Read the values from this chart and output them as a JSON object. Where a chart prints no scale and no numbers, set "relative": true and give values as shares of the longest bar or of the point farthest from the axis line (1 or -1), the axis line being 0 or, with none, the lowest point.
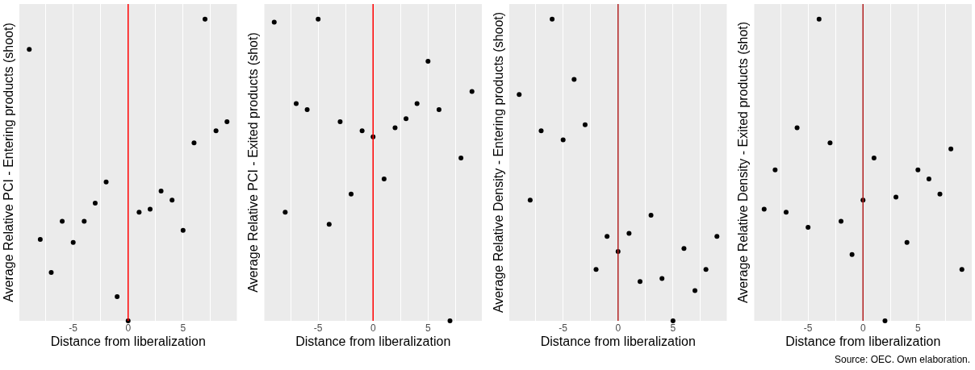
{
  "chart_data": [
    {
      "type": "scatter",
      "relative": true,
      "xlabel": "Distance from liberalization",
      "ylabel": "Average Relative PCI - Entering products (shoot)",
      "x": [
        -9,
        -8,
        -7,
        -6,
        -5,
        -4,
        -3,
        -2,
        -1,
        0,
        1,
        2,
        3,
        4,
        5,
        6,
        7,
        8,
        9
      ],
      "series": [
        {
          "color": "#000000",
          "values": [
            0.9,
            0.27,
            0.16,
            0.33,
            0.26,
            0.33,
            0.39,
            0.46,
            0.08,
            0,
            0.36,
            0.37,
            0.43,
            0.4,
            0.3,
            0.59,
            1,
            0.63,
            0.66
          ]
        }
      ],
      "xlim": [
        -9.9,
        9.9
      ],
      "xticks": [
        {
          "value": -7.5,
          "label": null
        },
        -5,
        {
          "value": -2.5,
          "label": null
        },
        0,
        {
          "value": 2.5,
          "label": null
        },
        5,
        {
          "value": 7.5,
          "label": null
        }
      ],
      "grid": "x",
      "marker": "circle",
      "tick_labels": "x",
      "ref_lines": [
        {
          "axis": "x",
          "value": 0,
          "color": "#ff0000"
        }
      ]
    },
    {
      "type": "scatter",
      "relative": true,
      "xlabel": "Distance from liberalization",
      "ylabel": "Average Relative PCI - Exited products (shot)",
      "x": [
        -9,
        -8,
        -7,
        -6,
        -5,
        -4,
        -3,
        -2,
        -1,
        0,
        1,
        2,
        3,
        4,
        5,
        6,
        7,
        8,
        9
      ],
      "series": [
        {
          "color": "#000000",
          "values": [
            0.99,
            0.36,
            0.72,
            0.7,
            1,
            0.32,
            0.66,
            0.42,
            0.63,
            0.61,
            0.47,
            0.64,
            0.67,
            0.72,
            0.86,
            0.7,
            0,
            0.54,
            0.76
          ]
        }
      ],
      "xlim": [
        -9.9,
        9.9
      ],
      "xticks": [
        {
          "value": -7.5,
          "label": null
        },
        -5,
        {
          "value": -2.5,
          "label": null
        },
        0,
        {
          "value": 2.5,
          "label": null
        },
        5,
        {
          "value": 7.5,
          "label": null
        }
      ],
      "grid": "x",
      "marker": "circle",
      "tick_labels": "x",
      "ref_lines": [
        {
          "axis": "x",
          "value": 0,
          "color": "#ff0000"
        }
      ]
    },
    {
      "type": "scatter",
      "relative": true,
      "xlabel": "Distance from liberalization",
      "ylabel": "Average Relative Density - Entering products (shoot)",
      "x": [
        -9,
        -8,
        -7,
        -6,
        -5,
        -4,
        -3,
        -2,
        -1,
        0,
        1,
        2,
        3,
        4,
        5,
        6,
        7,
        8,
        9
      ],
      "series": [
        {
          "color": "#000000",
          "values": [
            0.75,
            0.4,
            0.63,
            1,
            0.6,
            0.8,
            0.65,
            0.17,
            0.28,
            0.23,
            0.29,
            0.13,
            0.35,
            0.14,
            0,
            0.24,
            0.1,
            0.17,
            0.28
          ]
        }
      ],
      "xlim": [
        -9.9,
        9.9
      ],
      "xticks": [
        {
          "value": -7.5,
          "label": null
        },
        -5,
        {
          "value": -2.5,
          "label": null
        },
        0,
        {
          "value": 2.5,
          "label": null
        },
        5,
        {
          "value": 7.5,
          "label": null
        }
      ],
      "grid": "x",
      "marker": "circle",
      "tick_labels": "x",
      "ref_lines": [
        {
          "axis": "x",
          "value": 0,
          "color": "#b22222"
        }
      ]
    },
    {
      "type": "scatter",
      "relative": true,
      "xlabel": "Distance from liberalization",
      "ylabel": "Average Relative Density - Exited products (shot)",
      "x": [
        -9,
        -8,
        -7,
        -6,
        -5,
        -4,
        -3,
        -2,
        -1,
        0,
        1,
        2,
        3,
        4,
        5,
        6,
        7,
        8,
        9
      ],
      "series": [
        {
          "color": "#000000",
          "values": [
            0.37,
            0.5,
            0.36,
            0.64,
            0.31,
            1,
            0.59,
            0.33,
            0.22,
            0.4,
            0.54,
            0,
            0.41,
            0.26,
            0.5,
            0.47,
            0.42,
            0.57,
            0.17
          ]
        }
      ],
      "xlim": [
        -9.9,
        9.9
      ],
      "xticks": [
        {
          "value": -7.5,
          "label": null
        },
        -5,
        {
          "value": -2.5,
          "label": null
        },
        0,
        {
          "value": 2.5,
          "label": null
        },
        5,
        {
          "value": 7.5,
          "label": null
        }
      ],
      "grid": "x",
      "marker": "circle",
      "tick_labels": "x",
      "ref_lines": [
        {
          "axis": "x",
          "value": 0,
          "color": "#b22222"
        }
      ],
      "annotations": [
        "Source: OEC. Own elaboration."
      ]
    }
  ]
}
